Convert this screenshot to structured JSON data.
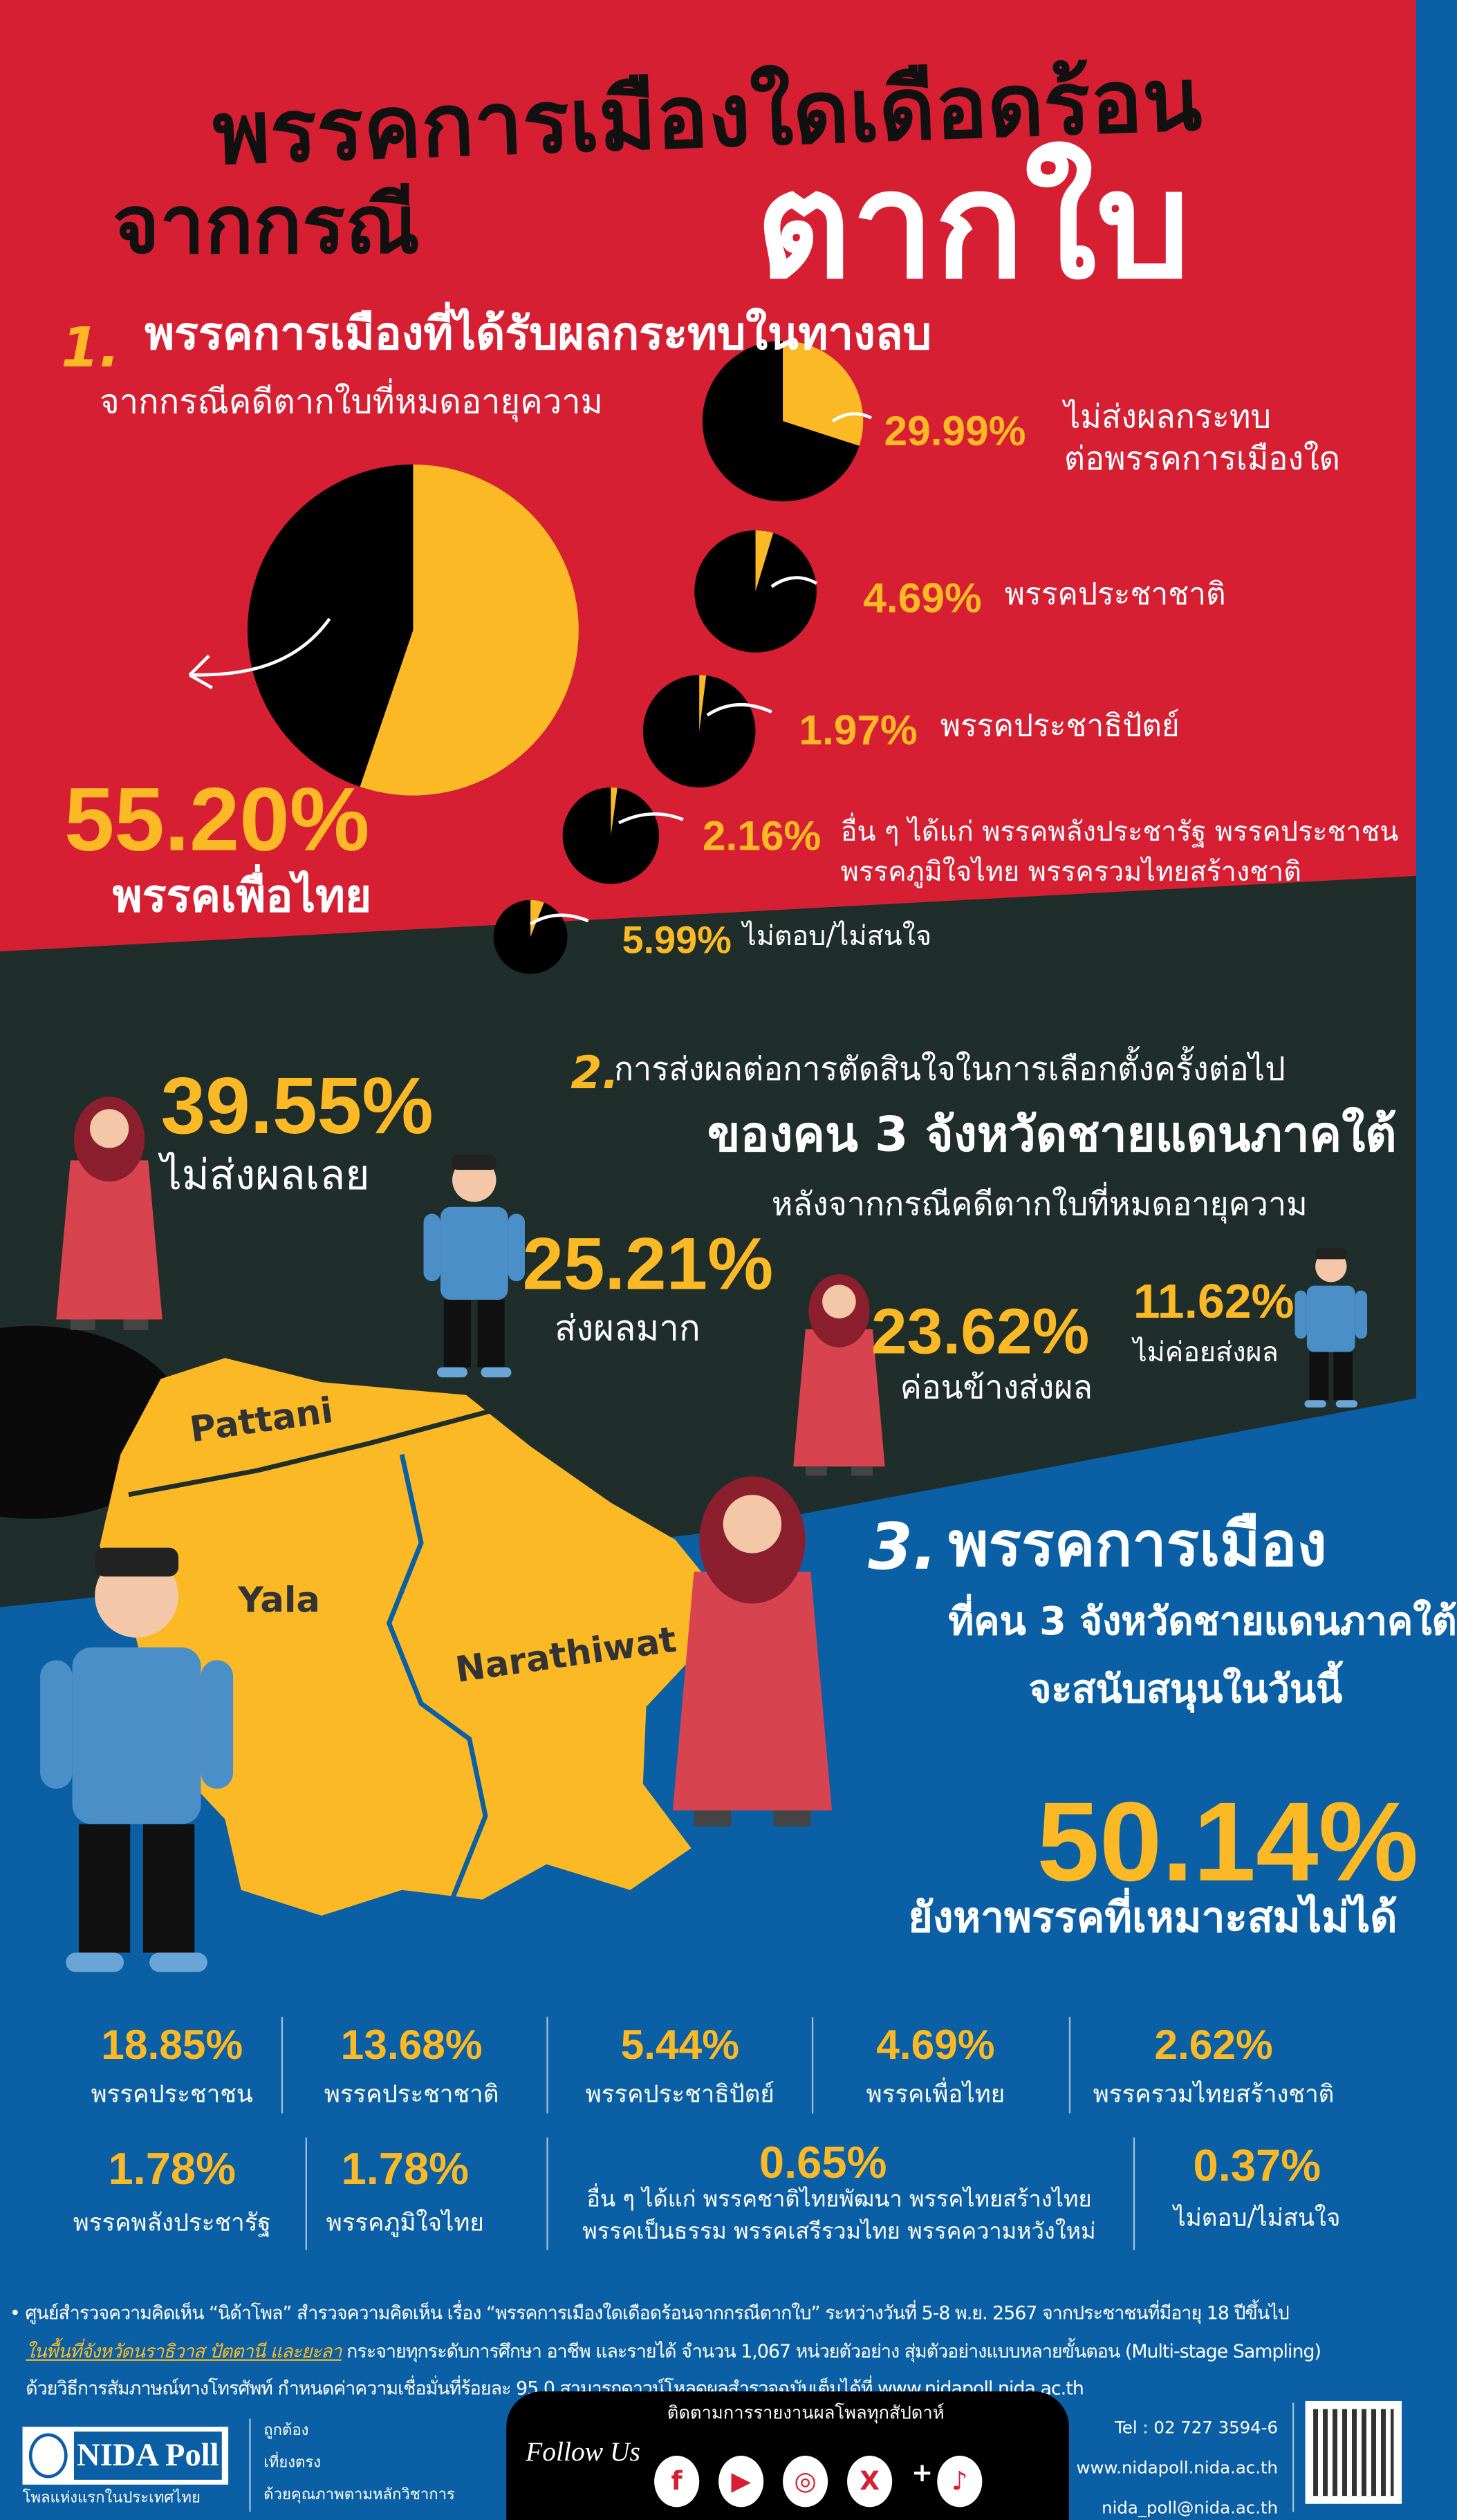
{
  "colors": {
    "red": "#d71f33",
    "dark": "#1f2e2a",
    "blue": "#0b5fa5",
    "yellow": "#fbb925",
    "black": "#111111"
  },
  "title": {
    "line1": "พรรคการเมืองใดเดือดร้อน",
    "line2": "จากกรณี",
    "highlight": "ตากใบ"
  },
  "section1": {
    "number": "1.",
    "heading": "พรรคการเมืองที่ได้รับผลกระทบในทางลบ",
    "subheading": "จากกรณีคดีตากใบที่หมดอายุความ",
    "main": {
      "value": "55.20%",
      "label": "พรรคเพื่อไทย",
      "percent": 55.2
    },
    "items": [
      {
        "value": "29.99%",
        "percent": 29.99,
        "label": "ไม่ส่งผลกระทบ",
        "label2": "ต่อพรรคการเมืองใด"
      },
      {
        "value": "4.69%",
        "percent": 4.69,
        "label": "พรรคประชาชาติ"
      },
      {
        "value": "1.97%",
        "percent": 1.97,
        "label": "พรรคประชาธิปัตย์"
      },
      {
        "value": "2.16%",
        "percent": 2.16,
        "label": "อื่น ๆ ได้แก่ พรรคพลังประชารัฐ พรรคประชาชน",
        "label2": "พรรคภูมิใจไทย พรรครวมไทยสร้างชาติ"
      },
      {
        "value": "5.99%",
        "percent": 5.99,
        "label": "ไม่ตอบ/ไม่สนใจ"
      }
    ]
  },
  "section2": {
    "number": "2.",
    "heading1": "การส่งผลต่อการตัดสินใจในการเลือกตั้งครั้งต่อไป",
    "heading2": "ของคน 3 จังหวัดชายแดนภาคใต้",
    "heading3": "หลังจากกรณีคดีตากใบที่หมดอายุความ",
    "items": [
      {
        "value": "39.55%",
        "label": "ไม่ส่งผลเลย"
      },
      {
        "value": "25.21%",
        "label": "ส่งผลมาก"
      },
      {
        "value": "23.62%",
        "label": "ค่อนข้างส่งผล"
      },
      {
        "value": "11.62%",
        "label": "ไม่ค่อยส่งผล"
      }
    ]
  },
  "map": {
    "labels": [
      "Pattani",
      "Yala",
      "Narathiwat"
    ]
  },
  "section3": {
    "number": "3.",
    "heading1": "พรรคการเมือง",
    "heading2": "ที่คน 3 จังหวัดชายแดนภาคใต้",
    "heading3": "จะสนับสนุนในวันนี้",
    "main": {
      "value": "50.14%",
      "label": "ยังหาพรรคที่เหมาะสมไม่ได้"
    },
    "row1": [
      {
        "value": "18.85%",
        "label": "พรรคประชาชน"
      },
      {
        "value": "13.68%",
        "label": "พรรคประชาชาติ"
      },
      {
        "value": "5.44%",
        "label": "พรรคประชาธิปัตย์"
      },
      {
        "value": "4.69%",
        "label": "พรรคเพื่อไทย"
      },
      {
        "value": "2.62%",
        "label": "พรรครวมไทยสร้างชาติ"
      }
    ],
    "row2": [
      {
        "value": "1.78%",
        "label": "พรรคพลังประชารัฐ"
      },
      {
        "value": "1.78%",
        "label": "พรรคภูมิใจไทย"
      },
      {
        "value": "0.65%",
        "label": "อื่น ๆ  ได้แก่ พรรคชาติไทยพัฒนา พรรคไทยสร้างไทย",
        "label2": "พรรคเป็นธรรม พรรคเสรีรวมไทย พรรคความหวังใหม่"
      },
      {
        "value": "0.37%",
        "label": "ไม่ตอบ/ไม่สนใจ"
      }
    ]
  },
  "footnote": {
    "line1": "ศูนย์สำรวจความคิดเห็น “นิด้าโพล” สำรวจความคิดเห็น เรื่อง “พรรคการเมืองใดเดือดร้อนจากกรณีตากใบ” ระหว่างวันที่ 5-8 พ.ย. 2567 จากประชาชนที่มีอายุ 18 ปีขึ้นไป",
    "line2_highlight": "ในพื้นที่จังหวัดนราธิวาส ปัตตานี และยะลา",
    "line2": " กระจายทุกระดับการศึกษา อาชีพ และรายได้ จำนวน 1,067 หน่วยตัวอย่าง สุ่มตัวอย่างแบบหลายขั้นตอน (Multi-stage Sampling)",
    "line3": "ด้วยวิธีการสัมภาษณ์ทางโทรศัพท์ กำหนดค่าความเชื่อมั่นที่ร้อยละ 95.0 สามารถดาวน์โหลดผลสำรวจฉบับเต็มได้ที่ www.nidapoll.nida.ac.th"
  },
  "footer": {
    "logo": "NIDA Poll",
    "logo_tagline": "โพลแห่งแรกในประเทศไทย",
    "taglines": [
      "ถูกต้อง",
      "เที่ยงตรง",
      "ด้วยคุณภาพตามหลักวิชาการ"
    ],
    "follow": "Follow Us",
    "follow_sub": "ติดตามการรายงานผลโพลทุกสัปดาห์",
    "social": [
      "facebook-icon",
      "youtube-icon",
      "instagram-icon",
      "x-icon",
      "tiktok-icon"
    ],
    "plus": "+",
    "tel": "Tel : 02 727 3594-6",
    "web": "www.nidapoll.nida.ac.th",
    "email": "nida_poll@nida.ac.th"
  }
}
